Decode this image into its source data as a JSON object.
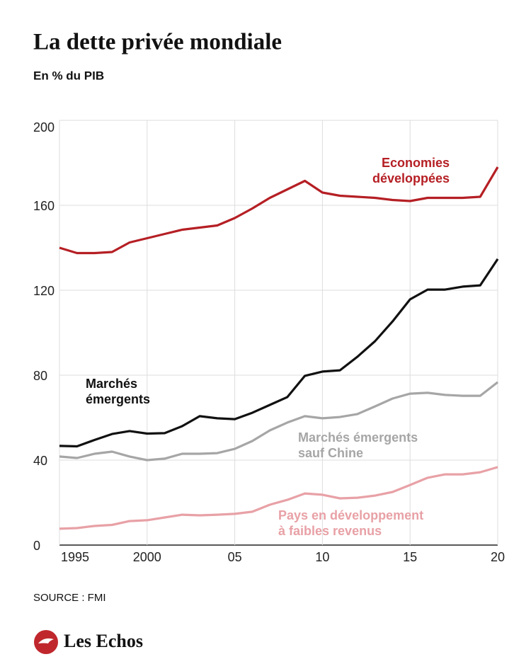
{
  "chart_data": {
    "type": "line",
    "title": "La dette privée mondiale",
    "subtitle": "En % du PIB",
    "source": "SOURCE : FMI",
    "brand": "Les Echos",
    "x": [
      1995,
      1996,
      1997,
      1998,
      1999,
      2000,
      2001,
      2002,
      2003,
      2004,
      2005,
      2006,
      2007,
      2008,
      2009,
      2010,
      2011,
      2012,
      2013,
      2014,
      2015,
      2016,
      2017,
      2018,
      2019,
      2020
    ],
    "xlim": [
      1995,
      2020
    ],
    "xticks": [
      1995,
      2000,
      {
        "value": 2005,
        "label": "05"
      },
      {
        "value": 2010,
        "label": "10"
      },
      {
        "value": 2015,
        "label": "15"
      },
      {
        "value": 2020,
        "label": "20"
      }
    ],
    "ylim": [
      0,
      200
    ],
    "yticks": [
      0,
      40,
      80,
      120,
      160,
      200
    ],
    "grid": true,
    "series": [
      {
        "name": [
          "Economies",
          "développées"
        ],
        "color": "#b51f24",
        "values": [
          140,
          137.5,
          137.5,
          138,
          142.5,
          144.5,
          146.5,
          148.5,
          149.5,
          150.5,
          154,
          158.5,
          163.5,
          167.5,
          171.5,
          166,
          164.5,
          164,
          163.5,
          162.5,
          162,
          163.5,
          163.5,
          163.5,
          164,
          178
        ]
      },
      {
        "name": [
          "Marchés",
          "émergents"
        ],
        "color": "#111111",
        "values": [
          46.7,
          46.5,
          49.5,
          52.3,
          53.7,
          52.5,
          52.7,
          56,
          60.7,
          59.7,
          59.3,
          62.3,
          66,
          69.7,
          79.7,
          81.7,
          82.3,
          88.7,
          96,
          105.3,
          115.7,
          120.3,
          120.3,
          121.7,
          122.3,
          134.7
        ]
      },
      {
        "name": [
          "Marchés émergents",
          "sauf Chine"
        ],
        "color": "#a6a6a6",
        "values": [
          41.7,
          41,
          43,
          44,
          41.7,
          40,
          40.7,
          43,
          43,
          43.3,
          45.3,
          49,
          54,
          57.7,
          60.7,
          59.7,
          60.3,
          61.7,
          65.3,
          69,
          71.3,
          71.7,
          70.7,
          70.3,
          70.3,
          76.7
        ]
      },
      {
        "name": [
          "Pays en développement",
          "à faibles revenus"
        ],
        "color": "#e8a1a6",
        "values": [
          7.7,
          8,
          9,
          9.5,
          11.3,
          11.7,
          13,
          14.3,
          14,
          14.3,
          14.7,
          15.7,
          19,
          21.3,
          24.3,
          23.7,
          22,
          22.3,
          23.3,
          25,
          28.3,
          31.7,
          33.3,
          33.3,
          34.3,
          36.7
        ]
      }
    ]
  }
}
